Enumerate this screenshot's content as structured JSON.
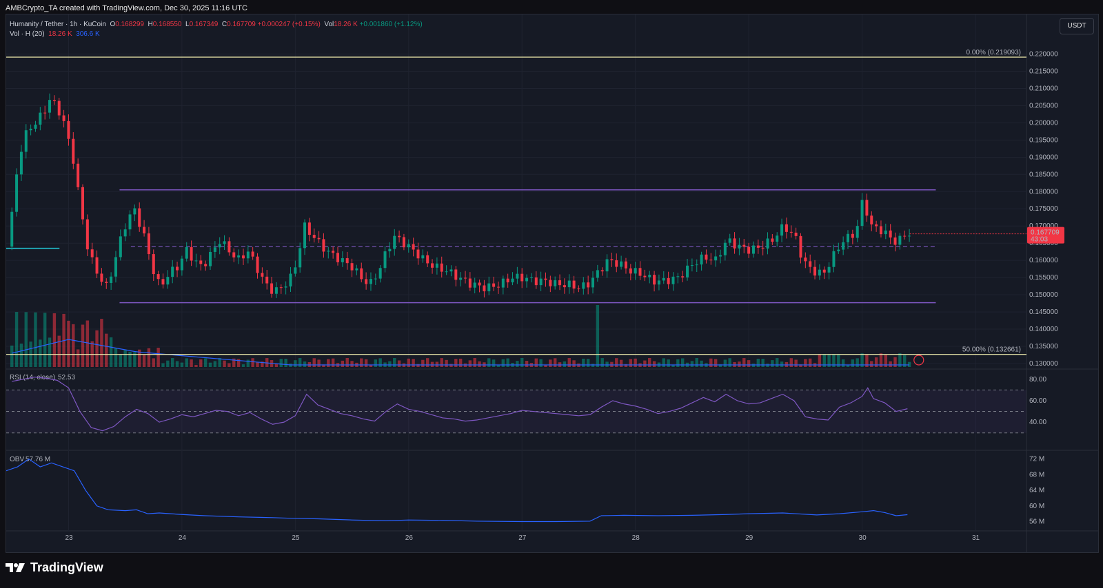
{
  "header": {
    "attribution": "AMBCrypto_TA created with TradingView.com, Dec 30, 2025 11:16 UTC"
  },
  "legend": {
    "symbol": "Humanity / Tether · 1h · KuCoin",
    "open_key": "O",
    "open": "0.168299",
    "high_key": "H",
    "high": "0.168550",
    "low_key": "L",
    "low": "0.167349",
    "close_key": "C",
    "close": "0.167709",
    "change": "+0.000247 (+0.15%)",
    "vol_key": "Vol",
    "vol": "18.26 K",
    "vol_change": "+0.001860 (+1.12%)",
    "vol_indicator": "Vol · H (20)",
    "vol_value": "18.26 K",
    "vol_ma": "306.6 K"
  },
  "unit_button": "USDT",
  "colors": {
    "up": "#089981",
    "down": "#f23645",
    "range_lines": "#7e57c2",
    "fib_lines": "#f5f1b0",
    "volume_ma": "#2962ff",
    "rsi": "#7e57c2",
    "obv": "#2962ff",
    "price_tag": "#f23645"
  },
  "chart_data": [
    {
      "type": "candlestick",
      "title": "Humanity / Tether · 1h · KuCoin",
      "x_ticks": [
        "23",
        "24",
        "25",
        "26",
        "27",
        "28",
        "29",
        "30",
        "31"
      ],
      "y_ticks": [
        "0.220000",
        "0.215000",
        "0.210000",
        "0.205000",
        "0.200000",
        "0.195000",
        "0.190000",
        "0.185000",
        "0.180000",
        "0.175000",
        "0.170000",
        "0.165000",
        "0.160000",
        "0.155000",
        "0.150000",
        "0.145000",
        "0.140000",
        "0.135000",
        "0.130000"
      ],
      "ylim": [
        0.129,
        0.2215
      ],
      "x_range": [
        22.45,
        31.45
      ],
      "last_price": "0.167709",
      "countdown": "43:03",
      "price_path": [
        [
          22.5,
          0.164
        ],
        [
          22.55,
          0.175
        ],
        [
          22.6,
          0.19
        ],
        [
          22.68,
          0.198
        ],
        [
          22.75,
          0.2
        ],
        [
          22.82,
          0.203
        ],
        [
          22.88,
          0.207
        ],
        [
          22.95,
          0.204
        ],
        [
          23.0,
          0.2
        ],
        [
          23.08,
          0.19
        ],
        [
          23.15,
          0.175
        ],
        [
          23.22,
          0.162
        ],
        [
          23.3,
          0.156
        ],
        [
          23.38,
          0.152
        ],
        [
          23.45,
          0.16
        ],
        [
          23.5,
          0.166
        ],
        [
          23.55,
          0.171
        ],
        [
          23.62,
          0.175
        ],
        [
          23.7,
          0.168
        ],
        [
          23.78,
          0.158
        ],
        [
          23.85,
          0.152
        ],
        [
          23.92,
          0.156
        ],
        [
          24.0,
          0.158
        ],
        [
          24.08,
          0.163
        ],
        [
          24.15,
          0.16
        ],
        [
          24.22,
          0.158
        ],
        [
          24.3,
          0.162
        ],
        [
          24.38,
          0.166
        ],
        [
          24.45,
          0.163
        ],
        [
          24.55,
          0.16
        ],
        [
          24.62,
          0.163
        ],
        [
          24.7,
          0.158
        ],
        [
          24.78,
          0.153
        ],
        [
          24.85,
          0.151
        ],
        [
          24.92,
          0.152
        ],
        [
          25.0,
          0.155
        ],
        [
          25.05,
          0.159
        ],
        [
          25.12,
          0.17
        ],
        [
          25.2,
          0.167
        ],
        [
          25.28,
          0.164
        ],
        [
          25.35,
          0.162
        ],
        [
          25.45,
          0.16
        ],
        [
          25.55,
          0.158
        ],
        [
          25.62,
          0.155
        ],
        [
          25.7,
          0.153
        ],
        [
          25.78,
          0.157
        ],
        [
          25.85,
          0.163
        ],
        [
          25.92,
          0.167
        ],
        [
          26.0,
          0.165
        ],
        [
          26.08,
          0.163
        ],
        [
          26.18,
          0.16
        ],
        [
          26.28,
          0.158
        ],
        [
          26.38,
          0.157
        ],
        [
          26.48,
          0.155
        ],
        [
          26.6,
          0.153
        ],
        [
          26.72,
          0.152
        ],
        [
          26.85,
          0.153
        ],
        [
          26.95,
          0.155
        ],
        [
          27.05,
          0.155
        ],
        [
          27.15,
          0.154
        ],
        [
          27.25,
          0.154
        ],
        [
          27.35,
          0.153
        ],
        [
          27.45,
          0.153
        ],
        [
          27.55,
          0.152
        ],
        [
          27.62,
          0.153
        ],
        [
          27.7,
          0.156
        ],
        [
          27.8,
          0.16
        ],
        [
          27.9,
          0.159
        ],
        [
          28.0,
          0.157
        ],
        [
          28.1,
          0.156
        ],
        [
          28.2,
          0.154
        ],
        [
          28.3,
          0.154
        ],
        [
          28.42,
          0.155
        ],
        [
          28.55,
          0.159
        ],
        [
          28.65,
          0.161
        ],
        [
          28.75,
          0.16
        ],
        [
          28.85,
          0.166
        ],
        [
          28.95,
          0.164
        ],
        [
          29.05,
          0.163
        ],
        [
          29.15,
          0.164
        ],
        [
          29.25,
          0.166
        ],
        [
          29.35,
          0.17
        ],
        [
          29.45,
          0.167
        ],
        [
          29.52,
          0.16
        ],
        [
          29.6,
          0.157
        ],
        [
          29.7,
          0.156
        ],
        [
          29.8,
          0.162
        ],
        [
          29.88,
          0.166
        ],
        [
          29.95,
          0.167
        ],
        [
          30.0,
          0.17
        ],
        [
          30.05,
          0.178
        ],
        [
          30.12,
          0.17
        ],
        [
          30.2,
          0.169
        ],
        [
          30.28,
          0.167
        ],
        [
          30.35,
          0.165
        ],
        [
          30.42,
          0.1677
        ]
      ],
      "annotations": [
        {
          "label": "0.00% (0.219093)",
          "value": 0.219093
        },
        {
          "label": "50.00% (0.132661)",
          "value": 0.132661
        }
      ],
      "range_high": 0.1805,
      "range_low": 0.1477,
      "midline": 0.164
    },
    {
      "type": "bar",
      "title": "Vol · H (20)",
      "note": "volume pane overlay; approximate relative heights",
      "spike_near": 27.65
    },
    {
      "type": "line",
      "title": "RSI (14, close)",
      "value_label": "52.53",
      "y_ticks": [
        "80.00",
        "60.00",
        "40.00"
      ],
      "ylim": [
        17,
        85
      ],
      "bands": [
        70,
        50,
        30
      ],
      "points": [
        [
          22.5,
          78
        ],
        [
          22.6,
          80
        ],
        [
          22.7,
          82
        ],
        [
          22.8,
          81
        ],
        [
          22.9,
          79
        ],
        [
          23.0,
          72
        ],
        [
          23.1,
          50
        ],
        [
          23.2,
          35
        ],
        [
          23.3,
          32
        ],
        [
          23.4,
          36
        ],
        [
          23.5,
          45
        ],
        [
          23.6,
          52
        ],
        [
          23.7,
          48
        ],
        [
          23.8,
          40
        ],
        [
          23.9,
          43
        ],
        [
          24.0,
          47
        ],
        [
          24.1,
          45
        ],
        [
          24.2,
          48
        ],
        [
          24.3,
          51
        ],
        [
          24.4,
          50
        ],
        [
          24.5,
          46
        ],
        [
          24.6,
          49
        ],
        [
          24.7,
          43
        ],
        [
          24.8,
          38
        ],
        [
          24.9,
          40
        ],
        [
          25.0,
          46
        ],
        [
          25.1,
          66
        ],
        [
          25.2,
          56
        ],
        [
          25.3,
          52
        ],
        [
          25.4,
          48
        ],
        [
          25.5,
          46
        ],
        [
          25.6,
          43
        ],
        [
          25.7,
          41
        ],
        [
          25.8,
          50
        ],
        [
          25.9,
          57
        ],
        [
          26.0,
          52
        ],
        [
          26.1,
          50
        ],
        [
          26.2,
          47
        ],
        [
          26.3,
          44
        ],
        [
          26.4,
          43
        ],
        [
          26.5,
          41
        ],
        [
          26.6,
          42
        ],
        [
          26.7,
          44
        ],
        [
          26.8,
          46
        ],
        [
          26.9,
          48
        ],
        [
          27.0,
          51
        ],
        [
          27.1,
          50
        ],
        [
          27.2,
          49
        ],
        [
          27.3,
          48
        ],
        [
          27.4,
          47
        ],
        [
          27.5,
          46
        ],
        [
          27.6,
          47
        ],
        [
          27.7,
          54
        ],
        [
          27.8,
          60
        ],
        [
          27.9,
          57
        ],
        [
          28.0,
          55
        ],
        [
          28.1,
          52
        ],
        [
          28.2,
          48
        ],
        [
          28.3,
          50
        ],
        [
          28.4,
          53
        ],
        [
          28.5,
          58
        ],
        [
          28.6,
          63
        ],
        [
          28.7,
          59
        ],
        [
          28.8,
          66
        ],
        [
          28.9,
          60
        ],
        [
          29.0,
          57
        ],
        [
          29.1,
          58
        ],
        [
          29.2,
          62
        ],
        [
          29.3,
          66
        ],
        [
          29.4,
          60
        ],
        [
          29.5,
          45
        ],
        [
          29.6,
          43
        ],
        [
          29.7,
          42
        ],
        [
          29.8,
          54
        ],
        [
          29.9,
          58
        ],
        [
          30.0,
          64
        ],
        [
          30.05,
          72
        ],
        [
          30.1,
          62
        ],
        [
          30.2,
          58
        ],
        [
          30.3,
          50
        ],
        [
          30.4,
          52.53
        ]
      ]
    },
    {
      "type": "line",
      "title": "OBV",
      "value_label": "57.76 M",
      "y_ticks": [
        "72 M",
        "68 M",
        "64 M",
        "60 M",
        "56 M"
      ],
      "ylim": [
        54.5,
        73
      ],
      "points": [
        [
          22.45,
          69
        ],
        [
          22.55,
          70
        ],
        [
          22.65,
          72
        ],
        [
          22.75,
          70
        ],
        [
          22.85,
          71
        ],
        [
          22.95,
          70
        ],
        [
          23.05,
          69
        ],
        [
          23.15,
          64
        ],
        [
          23.25,
          60
        ],
        [
          23.35,
          59
        ],
        [
          23.5,
          58.8
        ],
        [
          23.6,
          59
        ],
        [
          23.7,
          58
        ],
        [
          23.8,
          58.2
        ],
        [
          24.0,
          57.8
        ],
        [
          24.2,
          57.5
        ],
        [
          24.5,
          57.2
        ],
        [
          24.8,
          57.0
        ],
        [
          25.0,
          56.8
        ],
        [
          25.2,
          56.7
        ],
        [
          25.5,
          56.4
        ],
        [
          25.8,
          56.2
        ],
        [
          26.0,
          56.4
        ],
        [
          26.3,
          56.3
        ],
        [
          26.6,
          56.1
        ],
        [
          27.0,
          56.0
        ],
        [
          27.3,
          56.0
        ],
        [
          27.6,
          56.1
        ],
        [
          27.7,
          57.5
        ],
        [
          27.9,
          57.6
        ],
        [
          28.2,
          57.5
        ],
        [
          28.5,
          57.6
        ],
        [
          28.8,
          57.8
        ],
        [
          29.0,
          58.0
        ],
        [
          29.3,
          58.2
        ],
        [
          29.6,
          57.7
        ],
        [
          29.8,
          58.0
        ],
        [
          30.0,
          58.5
        ],
        [
          30.1,
          58.8
        ],
        [
          30.2,
          58.3
        ],
        [
          30.3,
          57.5
        ],
        [
          30.4,
          57.76
        ]
      ]
    }
  ],
  "footer": {
    "brand": "TradingView"
  }
}
